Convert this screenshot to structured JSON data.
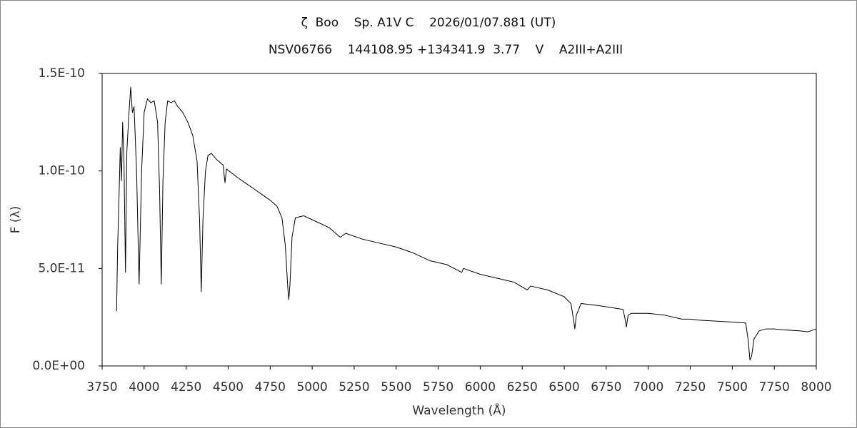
{
  "chart_data": {
    "type": "line",
    "title": "ζ  Boo    Sp. A1V C    2026/01/07.881 (UT)",
    "subtitle": "NSV06766    144108.95 +134341.9  3.77    V    A2III+A2III",
    "x_label": "Wavelength (Å)",
    "y_label": "F (λ)",
    "grid": false,
    "xlim": [
      3750,
      8000
    ],
    "xticks": [
      3750,
      4000,
      4250,
      4500,
      4750,
      5000,
      5250,
      5500,
      5750,
      6000,
      6250,
      6500,
      6750,
      7000,
      7250,
      7500,
      7750,
      8000
    ],
    "ylim": [
      0,
      1.5e-10
    ],
    "yticks": [
      {
        "value": 0,
        "label": "0.0E+00"
      },
      {
        "value": 5e-11,
        "label": "5.0E-11"
      },
      {
        "value": 1e-10,
        "label": "1.0E-10"
      },
      {
        "value": 1.5e-10,
        "label": "1.5E-10"
      }
    ],
    "x": [
      3836,
      3842,
      3850,
      3858,
      3865,
      3872,
      3880,
      3889,
      3897,
      3910,
      3920,
      3930,
      3940,
      3955,
      3970,
      3985,
      4000,
      4020,
      4040,
      4060,
      4080,
      4092,
      4102,
      4112,
      4125,
      4140,
      4160,
      4180,
      4200,
      4230,
      4260,
      4290,
      4315,
      4330,
      4340,
      4350,
      4365,
      4380,
      4400,
      4430,
      4470,
      4481,
      4490,
      4550,
      4600,
      4650,
      4700,
      4750,
      4790,
      4820,
      4840,
      4855,
      4861,
      4868,
      4880,
      4900,
      4950,
      5000,
      5100,
      5167,
      5200,
      5300,
      5400,
      5500,
      5600,
      5700,
      5800,
      5890,
      5900,
      6000,
      6100,
      6200,
      6280,
      6300,
      6400,
      6500,
      6540,
      6555,
      6563,
      6572,
      6600,
      6700,
      6850,
      6862,
      6870,
      6880,
      6900,
      7000,
      7100,
      7200,
      7250,
      7300,
      7400,
      7500,
      7580,
      7595,
      7605,
      7615,
      7630,
      7660,
      7700,
      7750,
      7800,
      7900,
      7950,
      8000
    ],
    "series": [
      {
        "color": "#000000",
        "values": [
          2.8e-11,
          6e-11,
          8.5e-11,
          1.12e-10,
          9.5e-11,
          1.25e-10,
          1.05e-10,
          4.8e-11,
          1.1e-10,
          1.3e-10,
          1.43e-10,
          1.3e-10,
          1.33e-10,
          1e-10,
          4.2e-11,
          1e-10,
          1.3e-10,
          1.37e-10,
          1.35e-10,
          1.36e-10,
          1.25e-10,
          9e-11,
          4.2e-11,
          9.5e-11,
          1.25e-10,
          1.36e-10,
          1.35e-10,
          1.36e-10,
          1.33e-10,
          1.3e-10,
          1.25e-10,
          1.18e-10,
          1.05e-10,
          7.5e-11,
          3.8e-11,
          7.5e-11,
          1e-10,
          1.08e-10,
          1.09e-10,
          1.06e-10,
          1.03e-10,
          9.4e-11,
          1.01e-10,
          9.7e-11,
          9.4e-11,
          9.1e-11,
          8.8e-11,
          8.5e-11,
          8.2e-11,
          7.6e-11,
          6.2e-11,
          4e-11,
          3.4e-11,
          4.2e-11,
          6.6e-11,
          7.6e-11,
          7.7e-11,
          7.5e-11,
          7.1e-11,
          6.6e-11,
          6.8e-11,
          6.5e-11,
          6.3e-11,
          6.1e-11,
          5.8e-11,
          5.4e-11,
          5.2e-11,
          4.8e-11,
          5e-11,
          4.7e-11,
          4.5e-11,
          4.3e-11,
          3.9e-11,
          4.1e-11,
          3.9e-11,
          3.55e-11,
          3.2e-11,
          2.4e-11,
          1.9e-11,
          2.6e-11,
          3.2e-11,
          3.1e-11,
          2.9e-11,
          2.4e-11,
          2e-11,
          2.6e-11,
          2.7e-11,
          2.7e-11,
          2.6e-11,
          2.4e-11,
          2.4e-11,
          2.35e-11,
          2.3e-11,
          2.25e-11,
          2.2e-11,
          1.3e-11,
          3e-12,
          5e-12,
          1.4e-11,
          1.8e-11,
          1.9e-11,
          1.9e-11,
          1.85e-11,
          1.8e-11,
          1.75e-11,
          1.9e-11
        ]
      }
    ]
  }
}
